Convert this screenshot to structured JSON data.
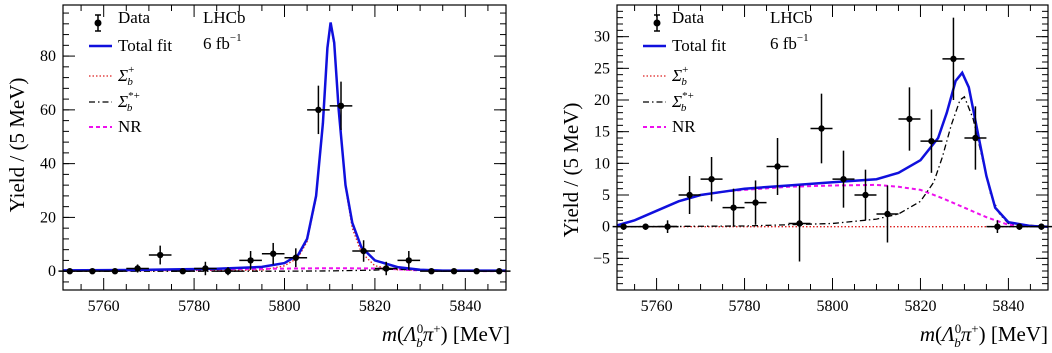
{
  "chart_data": [
    {
      "type": "scatter",
      "experiment": "LHCb",
      "luminosity": "6 fb",
      "luminosity_sup": "−1",
      "xlabel": "[MeV]",
      "ylabel": "Yield / (5 MeV)",
      "xlim": [
        5751,
        5849
      ],
      "ylim": [
        -7,
        99
      ],
      "xticks": [
        5760,
        5780,
        5800,
        5820,
        5840
      ],
      "yticks": [
        0,
        20,
        40,
        60,
        80
      ],
      "legend_position": "top-left",
      "legend": [
        "Data",
        "Total fit",
        "Σb+",
        "Σb*+",
        "NR"
      ],
      "data": {
        "x": [
          5752.5,
          5757.5,
          5762.5,
          5767.5,
          5772.5,
          5777.5,
          5782.5,
          5787.5,
          5792.5,
          5797.5,
          5802.5,
          5807.5,
          5812.5,
          5817.5,
          5822.5,
          5827.5,
          5832.5,
          5837.5,
          5842.5,
          5847.5
        ],
        "y": [
          0,
          0,
          0,
          1,
          6,
          0,
          1,
          0,
          4,
          6.5,
          5,
          60,
          61.5,
          7.5,
          1,
          4,
          0,
          0,
          0,
          0
        ],
        "yerr": [
          0.5,
          0.5,
          1,
          1.5,
          3.5,
          1,
          2.5,
          1.5,
          3.5,
          4,
          3.5,
          9,
          9,
          4,
          2.5,
          3.5,
          0.5,
          0.5,
          0.5,
          0.5
        ]
      },
      "curves": {
        "total_fit": [
          [
            5751,
            0.3
          ],
          [
            5770,
            0.5
          ],
          [
            5785,
            0.9
          ],
          [
            5795,
            1.6
          ],
          [
            5800,
            3
          ],
          [
            5803,
            6
          ],
          [
            5805,
            12
          ],
          [
            5807,
            28
          ],
          [
            5808.5,
            55
          ],
          [
            5809.5,
            83
          ],
          [
            5810.2,
            92.5
          ],
          [
            5811,
            85
          ],
          [
            5812,
            60
          ],
          [
            5813.5,
            32
          ],
          [
            5815,
            18
          ],
          [
            5817,
            9
          ],
          [
            5820,
            4
          ],
          [
            5825,
            1.5
          ],
          [
            5830,
            0.5
          ],
          [
            5835,
            0.2
          ],
          [
            5849,
            0.2
          ]
        ],
        "sigma_b": [
          [
            5751,
            0
          ],
          [
            5795,
            0.4
          ],
          [
            5800,
            2
          ],
          [
            5803,
            5
          ],
          [
            5805,
            11
          ],
          [
            5807,
            27
          ],
          [
            5808.5,
            54
          ],
          [
            5809.5,
            82
          ],
          [
            5810.2,
            91.5
          ],
          [
            5811,
            84
          ],
          [
            5812,
            59
          ],
          [
            5813.5,
            31
          ],
          [
            5815,
            16
          ],
          [
            5817,
            7
          ],
          [
            5820,
            2
          ],
          [
            5825,
            0.5
          ],
          [
            5849,
            0
          ]
        ],
        "sigma_b_star": [
          [
            5751,
            0
          ],
          [
            5800,
            0
          ],
          [
            5810,
            0.1
          ],
          [
            5820,
            0.4
          ],
          [
            5825,
            0.8
          ],
          [
            5830,
            0.3
          ],
          [
            5835,
            0
          ],
          [
            5849,
            0
          ]
        ],
        "nr": [
          [
            5751,
            0.2
          ],
          [
            5770,
            0.4
          ],
          [
            5790,
            0.8
          ],
          [
            5810,
            1.1
          ],
          [
            5822,
            1.0
          ],
          [
            5828,
            0.4
          ],
          [
            5833,
            0.1
          ],
          [
            5849,
            0
          ]
        ]
      }
    },
    {
      "type": "scatter",
      "experiment": "LHCb",
      "luminosity": "6 fb",
      "luminosity_sup": "−1",
      "xlabel": "[MeV]",
      "ylabel": "Yield / (5 MeV)",
      "xlim": [
        5751,
        5849
      ],
      "ylim": [
        -10,
        35
      ],
      "xticks": [
        5760,
        5780,
        5800,
        5820,
        5840
      ],
      "yticks": [
        -5,
        0,
        5,
        10,
        15,
        20,
        25,
        30
      ],
      "legend_position": "top-left",
      "legend": [
        "Data",
        "Total fit",
        "Σb+",
        "Σb*+",
        "NR"
      ],
      "data": {
        "x": [
          5752.5,
          5757.5,
          5762.5,
          5767.5,
          5772.5,
          5777.5,
          5782.5,
          5787.5,
          5792.5,
          5797.5,
          5802.5,
          5807.5,
          5812.5,
          5817.5,
          5822.5,
          5827.5,
          5832.5,
          5837.5,
          5842.5,
          5847.5
        ],
        "y": [
          0,
          0,
          0,
          5,
          7.5,
          3,
          3.8,
          9.5,
          0.5,
          15.5,
          7.5,
          5,
          2,
          17,
          13.5,
          26.5,
          14,
          0,
          0,
          0
        ],
        "yerr": [
          0.5,
          0.5,
          1,
          3,
          3.5,
          3,
          3.5,
          4.5,
          6,
          5.5,
          4.5,
          4,
          4.5,
          5,
          5,
          6.5,
          5,
          1,
          0.5,
          0.5
        ]
      },
      "curves": {
        "total_fit": [
          [
            5751,
            0.2
          ],
          [
            5755,
            1
          ],
          [
            5760,
            2.5
          ],
          [
            5765,
            4
          ],
          [
            5770,
            5
          ],
          [
            5775,
            5.5
          ],
          [
            5780,
            6
          ],
          [
            5790,
            6.5
          ],
          [
            5800,
            7
          ],
          [
            5810,
            7.5
          ],
          [
            5815,
            8.5
          ],
          [
            5820,
            10.5
          ],
          [
            5824,
            14
          ],
          [
            5826,
            18
          ],
          [
            5828,
            23
          ],
          [
            5829.5,
            24.3
          ],
          [
            5831,
            22
          ],
          [
            5833,
            15
          ],
          [
            5835,
            8
          ],
          [
            5837,
            3
          ],
          [
            5840,
            0.7
          ],
          [
            5845,
            0.1
          ],
          [
            5849,
            0
          ]
        ],
        "sigma_b": [
          [
            5751,
            0
          ],
          [
            5849,
            0
          ]
        ],
        "sigma_b_star": [
          [
            5751,
            0
          ],
          [
            5780,
            0.1
          ],
          [
            5800,
            0.5
          ],
          [
            5810,
            1.2
          ],
          [
            5815,
            2
          ],
          [
            5820,
            4
          ],
          [
            5823,
            7
          ],
          [
            5825,
            11
          ],
          [
            5827,
            16
          ],
          [
            5829,
            20
          ],
          [
            5830,
            20.5
          ],
          [
            5832,
            17
          ],
          [
            5834,
            11
          ],
          [
            5836,
            5
          ],
          [
            5838,
            2
          ],
          [
            5840,
            0.5
          ],
          [
            5849,
            0
          ]
        ],
        "nr": [
          [
            5751,
            0.2
          ],
          [
            5755,
            1
          ],
          [
            5760,
            2.5
          ],
          [
            5765,
            4
          ],
          [
            5770,
            5
          ],
          [
            5775,
            5.5
          ],
          [
            5780,
            5.8
          ],
          [
            5790,
            6.3
          ],
          [
            5800,
            6.5
          ],
          [
            5810,
            6.6
          ],
          [
            5815,
            6.3
          ],
          [
            5820,
            5.8
          ],
          [
            5825,
            4.5
          ],
          [
            5830,
            3
          ],
          [
            5835,
            1.5
          ],
          [
            5840,
            0.3
          ],
          [
            5849,
            0
          ]
        ]
      }
    }
  ]
}
